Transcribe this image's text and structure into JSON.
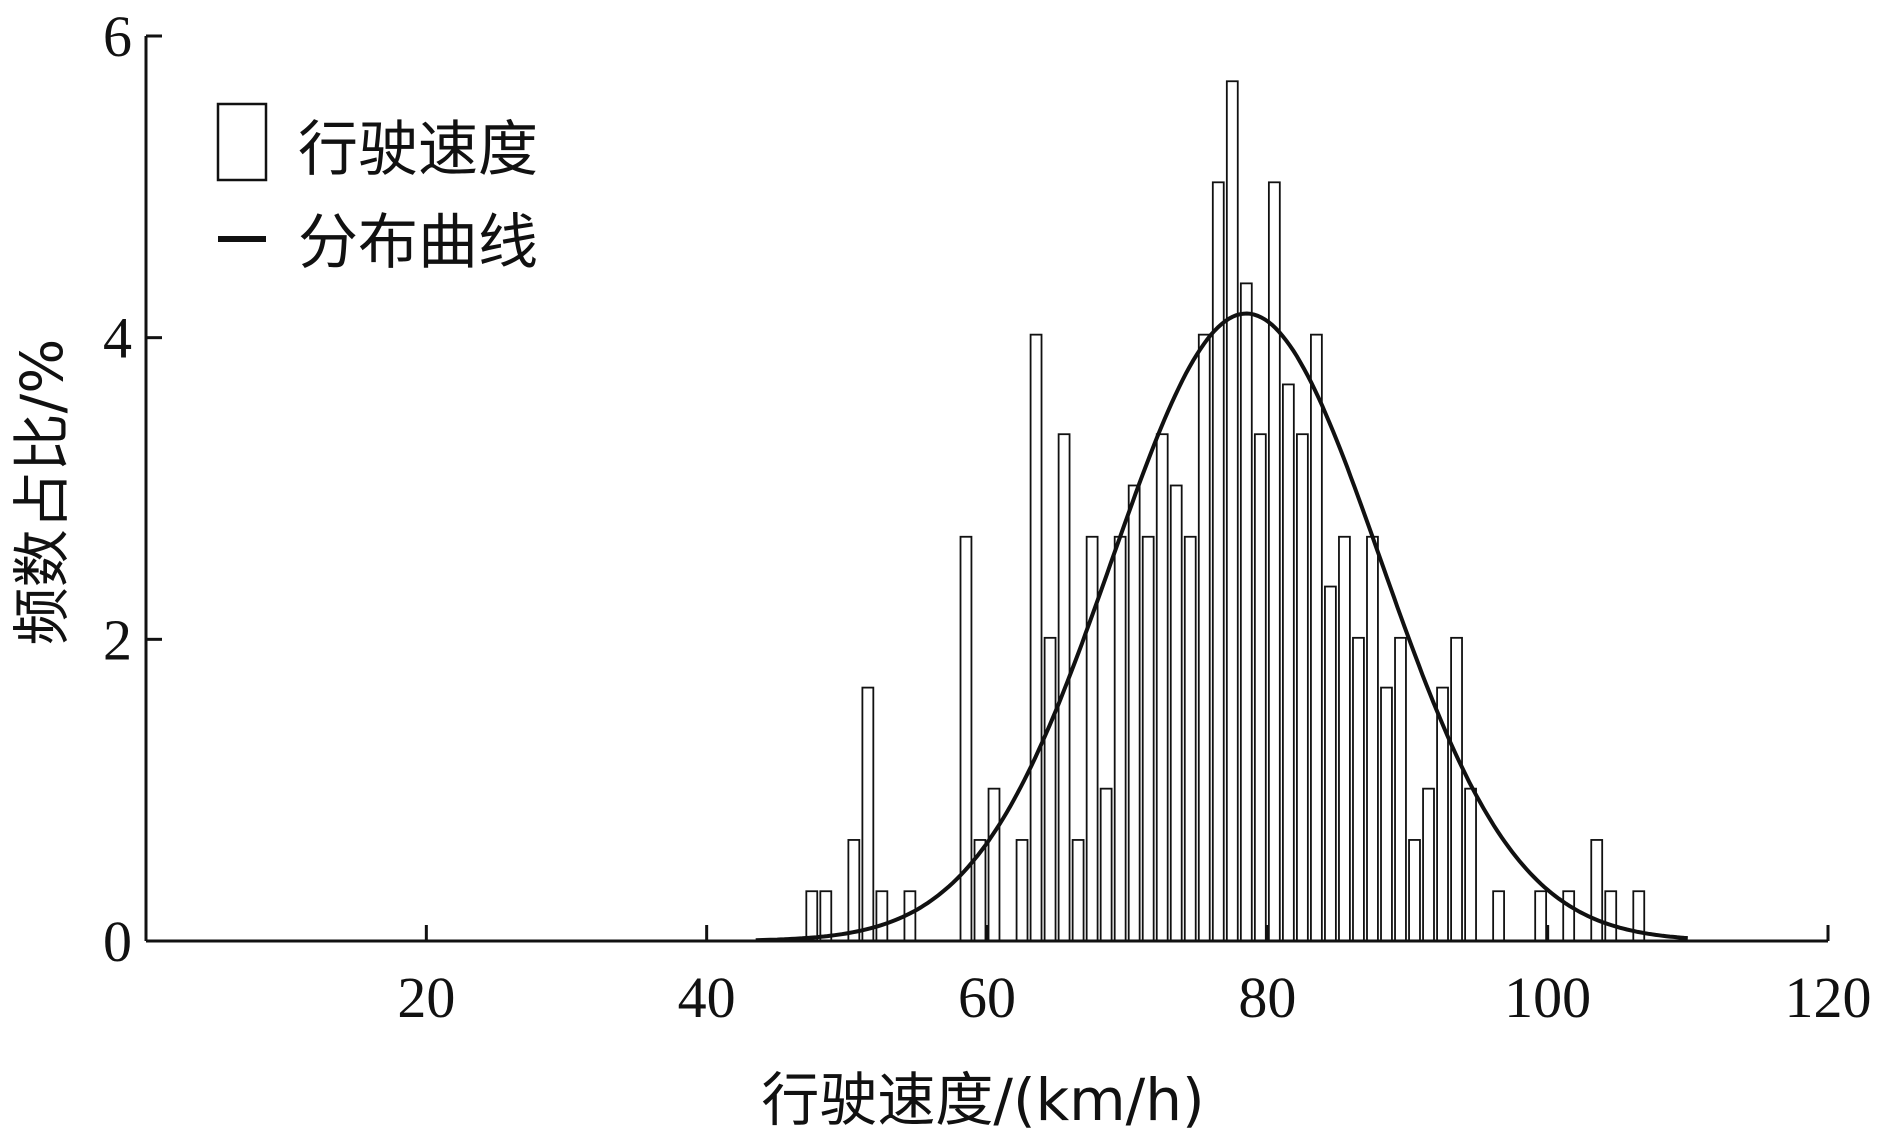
{
  "chart_data": {
    "type": "bar",
    "xlabel": "行驶速度/(km/h)",
    "ylabel": "频数占比/%",
    "xlim": [
      0,
      120
    ],
    "ylim": [
      0,
      6
    ],
    "x_ticks": [
      20,
      40,
      60,
      80,
      100,
      120
    ],
    "y_ticks": [
      0,
      2,
      4,
      6
    ],
    "grid": false,
    "legend_position": "top-left",
    "series": [
      {
        "name": "行驶速度",
        "kind": "bar",
        "x": [
          47.5,
          48.5,
          50.5,
          51.5,
          52.5,
          54.5,
          58.5,
          59.5,
          60.5,
          62.5,
          63.5,
          64.5,
          65.5,
          66.5,
          67.5,
          68.5,
          69.5,
          70.5,
          71.5,
          72.5,
          73.5,
          74.5,
          75.5,
          76.5,
          77.5,
          78.5,
          79.5,
          80.5,
          81.5,
          82.5,
          83.5,
          84.5,
          85.5,
          86.5,
          87.5,
          88.5,
          89.5,
          90.5,
          91.5,
          92.5,
          93.5,
          94.5,
          96.5,
          99.5,
          101.5,
          103.5,
          104.5,
          106.5
        ],
        "values": [
          0.33,
          0.33,
          0.67,
          1.68,
          0.33,
          0.33,
          2.68,
          0.67,
          1.01,
          0.67,
          4.02,
          2.01,
          3.36,
          0.67,
          2.68,
          1.01,
          2.68,
          3.02,
          2.68,
          3.36,
          3.02,
          2.68,
          4.02,
          5.03,
          5.7,
          4.36,
          3.36,
          5.03,
          3.69,
          3.36,
          4.02,
          2.35,
          2.68,
          2.01,
          2.68,
          1.68,
          2.01,
          0.67,
          1.01,
          1.68,
          2.01,
          1.01,
          0.33,
          0.33,
          0.33,
          0.67,
          0.33,
          0.33
        ]
      },
      {
        "name": "分布曲线",
        "kind": "line",
        "distribution": "normal",
        "mean": 78.5,
        "std": 9.6,
        "peak": 4.16,
        "x_range": [
          43.5,
          110
        ]
      }
    ]
  }
}
